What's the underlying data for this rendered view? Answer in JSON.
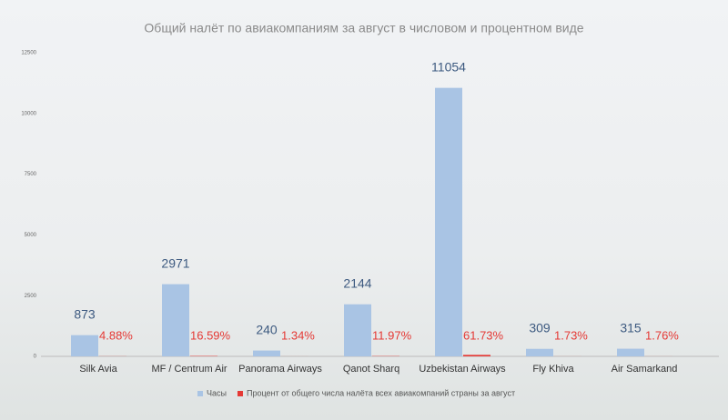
{
  "chart_data": {
    "type": "bar",
    "title": "Общий налёт по авиакомпаниям за август в числовом и процентном виде",
    "categories": [
      "Silk Avia",
      "MF / Centrum Air",
      "Panorama Airways",
      "Qanot Sharq",
      "Uzbekistan Airways",
      "Fly Khiva",
      "Air Samarkand"
    ],
    "series": [
      {
        "name": "Часы",
        "color": "#a9c4e4",
        "values": [
          873,
          2971,
          240,
          2144,
          11054,
          309,
          315
        ]
      },
      {
        "name": "Процент от общего числа налёта всех авиакомпаний страны за август",
        "color": "#e53935",
        "values": [
          4.88,
          16.59,
          1.34,
          11.97,
          61.73,
          1.73,
          1.76
        ],
        "value_labels": [
          "4.88%",
          "16.59%",
          "1.34%",
          "11.97%",
          "61.73%",
          "1.73%",
          "1.76%"
        ]
      }
    ],
    "ylim": [
      0,
      12500
    ],
    "yticks": [
      0,
      2500,
      5000,
      7500,
      10000,
      12500
    ],
    "grid": false
  }
}
